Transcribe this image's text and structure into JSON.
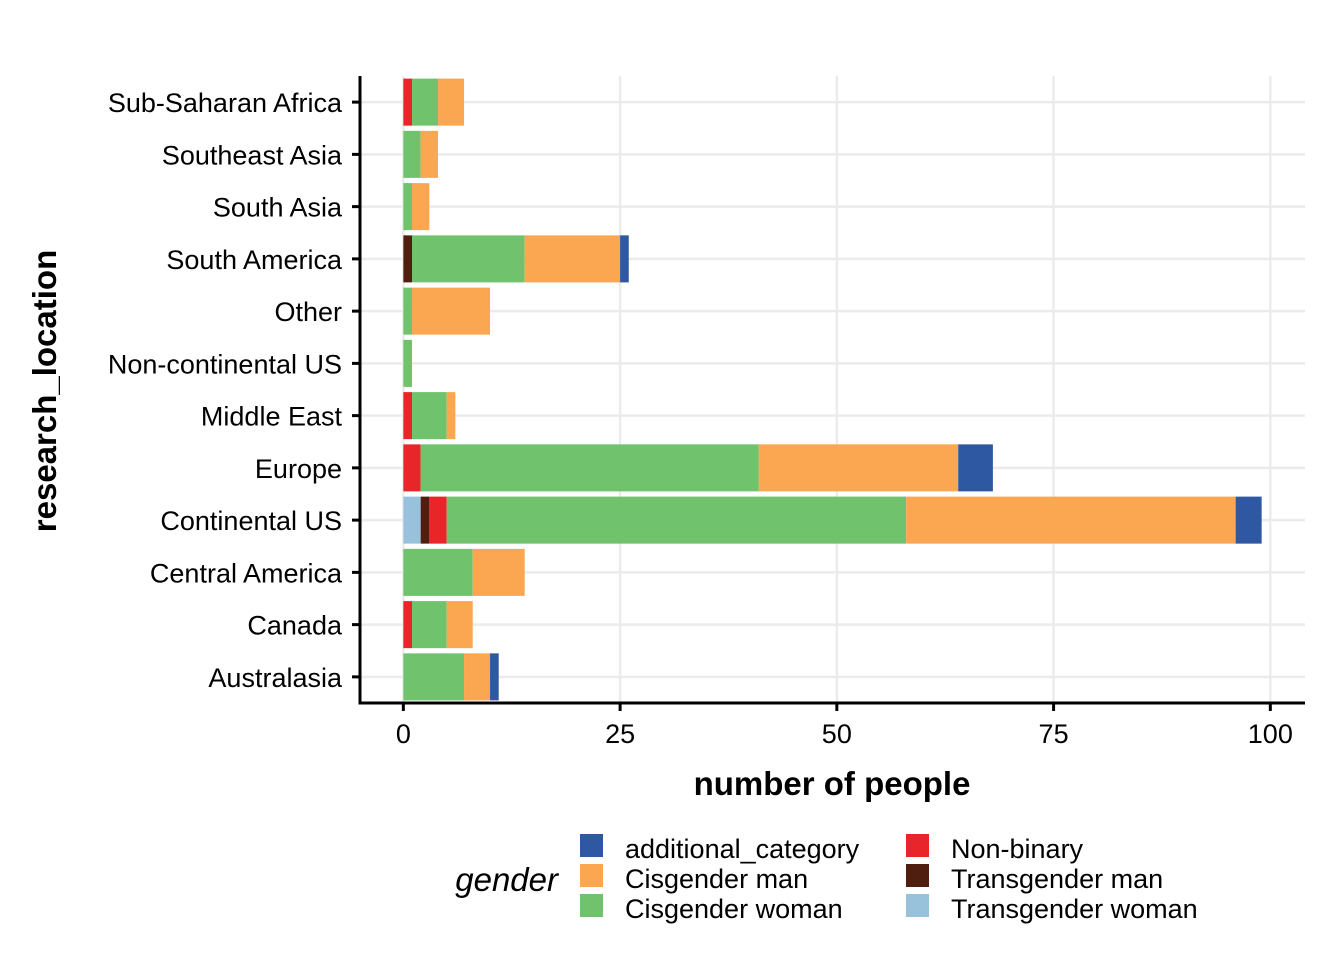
{
  "chart_data": {
    "type": "bar",
    "orientation": "horizontal",
    "stacked": true,
    "title": "",
    "xlabel": "number of people",
    "ylabel": "research_location",
    "xlim": [
      -5,
      104
    ],
    "xticks": [
      0,
      25,
      50,
      75,
      100
    ],
    "grid": true,
    "legend_position": "bottom",
    "legend_title": "gender",
    "categories": [
      "Australasia",
      "Canada",
      "Central America",
      "Continental US",
      "Europe",
      "Middle East",
      "Non-continental US",
      "Other",
      "South America",
      "South Asia",
      "Southeast Asia",
      "Sub-Saharan Africa"
    ],
    "series": [
      {
        "name": "Transgender woman",
        "color": "#98c1db",
        "values": [
          0,
          0,
          0,
          2,
          0,
          0,
          0,
          0,
          0,
          0,
          0,
          0
        ]
      },
      {
        "name": "Transgender man",
        "color": "#4f1e0e",
        "values": [
          0,
          0,
          0,
          1,
          0,
          0,
          0,
          0,
          1,
          0,
          0,
          0
        ]
      },
      {
        "name": "Non-binary",
        "color": "#e8262a",
        "values": [
          0,
          1,
          0,
          2,
          2,
          1,
          0,
          0,
          0,
          0,
          0,
          1
        ]
      },
      {
        "name": "Cisgender woman",
        "color": "#70c26c",
        "values": [
          7,
          4,
          8,
          53,
          39,
          4,
          1,
          1,
          13,
          1,
          2,
          3
        ]
      },
      {
        "name": "Cisgender man",
        "color": "#fba651",
        "values": [
          3,
          3,
          6,
          38,
          23,
          1,
          0,
          9,
          11,
          2,
          2,
          3
        ]
      },
      {
        "name": "additional_category",
        "color": "#2f58a2",
        "values": [
          1,
          0,
          0,
          3,
          4,
          0,
          0,
          0,
          1,
          0,
          0,
          0
        ]
      }
    ],
    "legend_order": [
      "additional_category",
      "Cisgender man",
      "Cisgender woman",
      "Non-binary",
      "Transgender man",
      "Transgender woman"
    ]
  }
}
